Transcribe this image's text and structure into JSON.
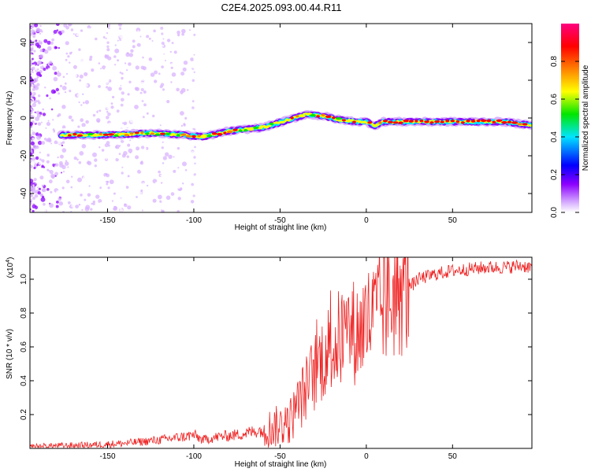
{
  "title": "C2E4.2025.093.00.44.R11",
  "chart_data": [
    {
      "type": "heatmap",
      "xlabel": "Height of straight line (km)",
      "ylabel": "Frequency (Hz)",
      "xlim": [
        -195,
        96
      ],
      "ylim": [
        -50,
        50
      ],
      "xticks": [
        -150,
        -100,
        -50,
        0,
        50
      ],
      "yticks": [
        -40,
        -20,
        0,
        20,
        40
      ],
      "colorbar": {
        "label": "Normalized spectral amplitude",
        "range": [
          0.0,
          1.0
        ],
        "ticks": [
          "0.0",
          "0.2",
          "0.4",
          "0.6",
          "0.8"
        ],
        "colors": [
          "#ffffff",
          "#d9b3ff",
          "#8c00ff",
          "#0000ff",
          "#00e5ff",
          "#00e600",
          "#ffff00",
          "#ff8000",
          "#ff0000",
          "#ff0080"
        ]
      },
      "ridge": {
        "x": [
          -177,
          -150,
          -125,
          -105,
          -95,
          -80,
          -60,
          -45,
          -35,
          -25,
          -15,
          -5,
          0,
          5,
          10,
          50,
          80,
          96
        ],
        "y": [
          -9,
          -9,
          -8,
          -9,
          -10,
          -7,
          -5,
          -1,
          2,
          1,
          -1,
          -2,
          -2,
          -4,
          -2,
          -2,
          -2,
          -4
        ]
      },
      "grid": false
    },
    {
      "type": "line",
      "xlabel": "Height of straight line (km)",
      "ylabel": "SNR (10 * v/v)",
      "yscale_label": "(x10",
      "yscale_exponent": "4",
      "yscale_suffix": ")",
      "xlim": [
        -195,
        96
      ],
      "ylim": [
        0,
        1.13
      ],
      "xticks": [
        -150,
        -100,
        -50,
        0,
        50
      ],
      "yticks": [
        "0.2",
        "0.4",
        "0.6",
        "0.8",
        "1.0"
      ],
      "color": "#ee2222",
      "series": [
        {
          "x": [
            -195,
            -180,
            -160,
            -140,
            -120,
            -105,
            -100,
            -95,
            -85,
            -75,
            -65,
            -55,
            -45,
            -40,
            -35,
            -30,
            -25,
            -20,
            -15,
            -10,
            -5,
            0,
            5,
            10,
            15,
            20,
            25,
            30,
            40,
            50,
            60,
            70,
            80,
            90,
            96
          ],
          "y": [
            0.01,
            0.015,
            0.02,
            0.03,
            0.05,
            0.07,
            0.08,
            0.05,
            0.07,
            0.08,
            0.1,
            0.12,
            0.15,
            0.25,
            0.35,
            0.45,
            0.55,
            0.6,
            0.65,
            0.7,
            0.68,
            0.75,
            0.78,
            0.85,
            0.9,
            0.92,
            0.95,
            1.0,
            1.03,
            1.05,
            1.06,
            1.07,
            1.07,
            1.08,
            1.07
          ]
        }
      ],
      "grid": false
    }
  ]
}
